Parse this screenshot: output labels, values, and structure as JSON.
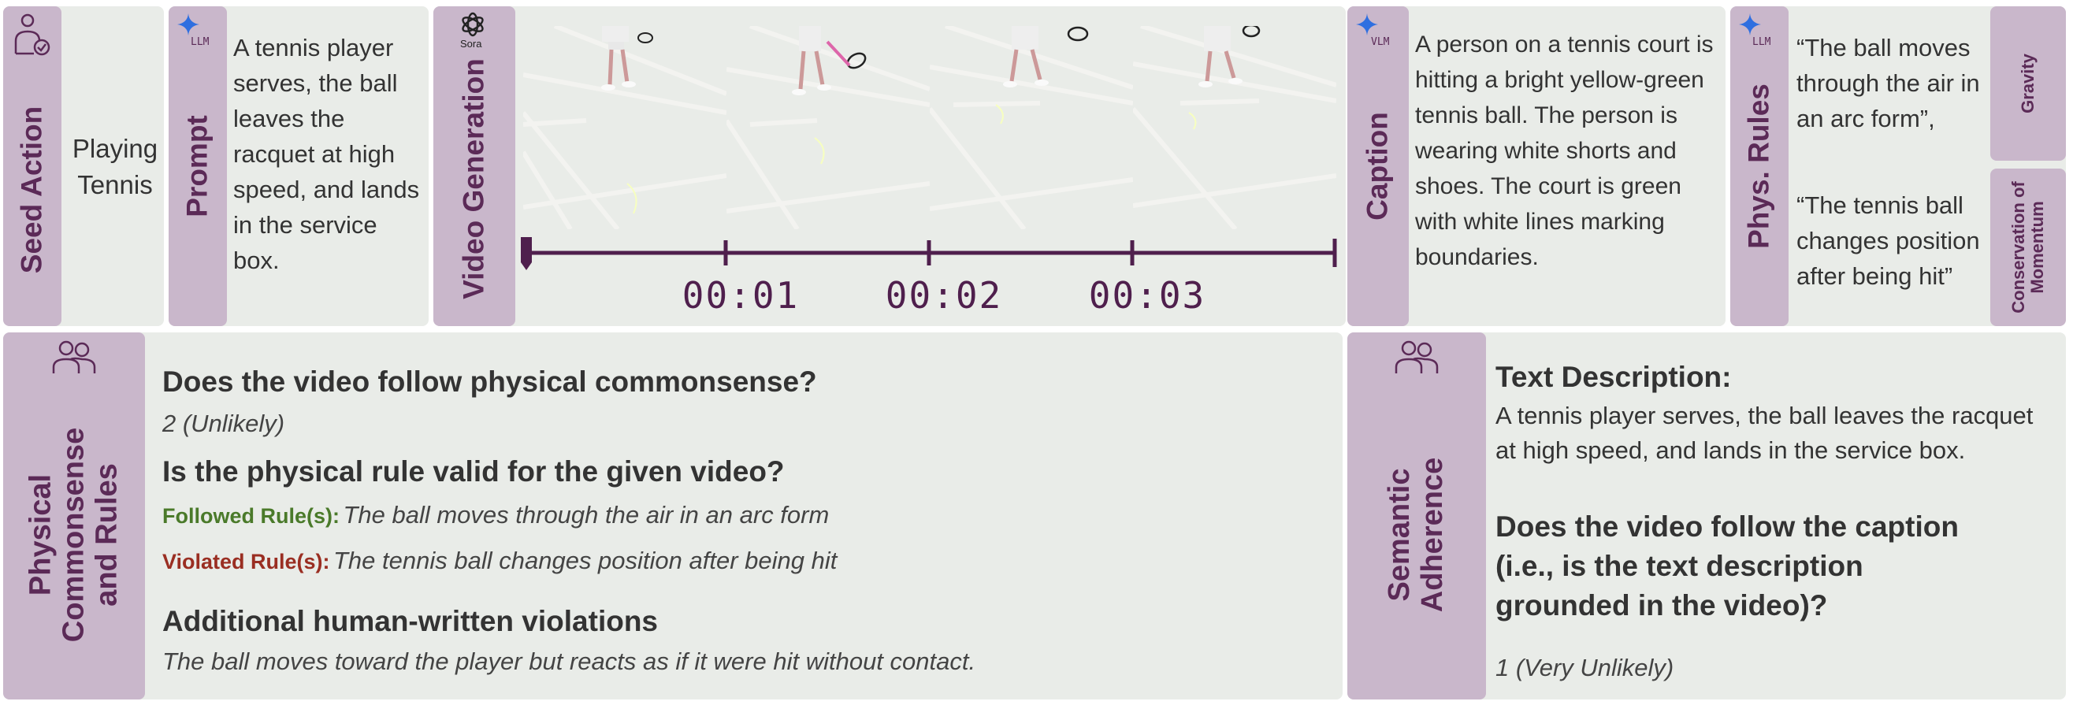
{
  "seed": {
    "tab_label": "Seed Action",
    "value": "Playing Tennis"
  },
  "prompt": {
    "tab_label": "Prompt",
    "badge": "LLM",
    "text": "A tennis player serves, the ball leaves the racquet at high speed, and lands in the service box."
  },
  "video": {
    "tab_label": "Video Generation",
    "badge": "Sora",
    "timestamps": [
      "00:01",
      "00:02",
      "00:03"
    ]
  },
  "caption": {
    "tab_label": "Caption",
    "badge": "VLM",
    "text": "A person on a tennis court is hitting a bright yellow-green tennis ball. The person is wearing white shorts and shoes. The court is green with white lines marking boundaries."
  },
  "phys_rules": {
    "tab_label": "Phys. Rules",
    "badge": "LLM",
    "rule1": "“The ball moves through the air in an arc form”,",
    "rule2": "“The tennis ball changes position after being hit”",
    "tag1": "Gravity",
    "tag2": "Conservation of Momentum"
  },
  "physical": {
    "tab_label": "Physical Commonsense and Rules",
    "q1": "Does the video follow physical commonsense?",
    "a1": "2 (Unlikely)",
    "q2": "Is the physical rule valid for the given video?",
    "followed_label": "Followed Rule(s):",
    "followed_text": "The ball moves through the air in an arc form",
    "violated_label": "Violated Rule(s):",
    "violated_text": "The tennis ball changes position after being hit",
    "q3": "Additional human-written violations",
    "a3": "The ball moves toward the player but reacts as if it were hit without contact."
  },
  "semantic": {
    "tab_label": "Semantic Adherence",
    "desc_heading": "Text Description:",
    "desc_text": "A tennis player serves, the ball leaves the racquet at high speed, and lands in the service box.",
    "question": "Does the video follow the caption (i.e., is the text description grounded in the video)?",
    "answer": "1 (Very Unlikely)"
  },
  "colors": {
    "panel": "#e9ece8",
    "tab": "#c9b7cb",
    "tab_text": "#5b2a57",
    "followed": "#4a7a2a",
    "violated": "#9a2e22",
    "timeline": "#4f1f4d"
  },
  "icons": [
    "person-check-icon",
    "sparkle-icon",
    "sora-logo-icon",
    "people-icon"
  ]
}
